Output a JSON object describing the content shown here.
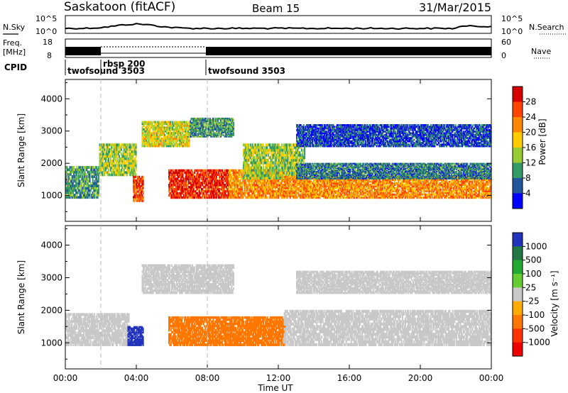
{
  "header": {
    "title": "Saskatoon (fitACF)",
    "beam": "Beam 15",
    "date": "31/Mar/2015"
  },
  "noise_panel": {
    "left_label": "N.Sky",
    "left_ticks": [
      "10^5",
      "10^0"
    ],
    "right_label": "N.Search",
    "right_ticks": [
      "10^5",
      "10^0"
    ]
  },
  "freq_panel": {
    "left_label_1": "Freq.",
    "left_label_2": "[MHz]",
    "left_ticks": [
      "18",
      "8"
    ],
    "right_label": "Nave",
    "right_ticks": [
      "60",
      "0"
    ]
  },
  "cpid": {
    "label": "CPID",
    "segments": [
      {
        "name": "twofsound 3503",
        "start_hour": 0
      },
      {
        "name": "rbsp 200",
        "start_hour": 2
      },
      {
        "name": "twofsound 3503",
        "start_hour": 8
      }
    ]
  },
  "x_axis": {
    "label": "Time UT",
    "ticks": [
      "00:00",
      "04:00",
      "08:00",
      "12:00",
      "16:00",
      "20:00",
      "00:00"
    ],
    "tick_hours": [
      0,
      4,
      8,
      12,
      16,
      20,
      24
    ]
  },
  "chart_data": [
    {
      "type": "heatmap",
      "name": "power",
      "ylabel": "Slant Range [km]",
      "ylim": [
        200,
        4600
      ],
      "yticks": [
        1000,
        2000,
        3000,
        4000
      ],
      "xlim": [
        0,
        24
      ],
      "colorbar": {
        "label": "Power [dB]",
        "ticks": [
          "28",
          "24",
          "20",
          "16",
          "12",
          "8",
          "4"
        ],
        "colors": [
          "#d70000",
          "#ff4400",
          "#ff8800",
          "#ffcc00",
          "#99cc33",
          "#339966",
          "#225599",
          "#0000ff"
        ]
      },
      "bands": [
        {
          "t0": 0,
          "t1": 1.9,
          "r0": 900,
          "r1": 1900,
          "level": 10
        },
        {
          "t0": 1.9,
          "t1": 4.0,
          "r0": 1600,
          "r1": 2600,
          "level": 14
        },
        {
          "t0": 3.8,
          "t1": 4.4,
          "r0": 800,
          "r1": 1600,
          "level": 26
        },
        {
          "t0": 4.3,
          "t1": 7.0,
          "r0": 2500,
          "r1": 3300,
          "level": 16
        },
        {
          "t0": 7.0,
          "t1": 9.5,
          "r0": 2800,
          "r1": 3400,
          "level": 10
        },
        {
          "t0": 5.8,
          "t1": 9.2,
          "r0": 900,
          "r1": 1800,
          "level": 28
        },
        {
          "t0": 9.2,
          "t1": 12.3,
          "r0": 900,
          "r1": 1800,
          "level": 22
        },
        {
          "t0": 10.0,
          "t1": 13.5,
          "r0": 1500,
          "r1": 2600,
          "level": 14
        },
        {
          "t0": 12.3,
          "t1": 24,
          "r0": 900,
          "r1": 1600,
          "level": 22
        },
        {
          "t0": 13.0,
          "t1": 24,
          "r0": 1500,
          "r1": 2000,
          "level": 8
        },
        {
          "t0": 13.0,
          "t1": 24,
          "r0": 2500,
          "r1": 3200,
          "level": 5
        }
      ]
    },
    {
      "type": "heatmap",
      "name": "velocity",
      "ylabel": "Slant Range [km]",
      "ylim": [
        200,
        4600
      ],
      "yticks": [
        1000,
        2000,
        3000,
        4000
      ],
      "xlim": [
        0,
        24
      ],
      "colorbar": {
        "label": "Velocity [m s⁻¹]",
        "ticks": [
          "1000",
          "500",
          "100",
          "25",
          "-25",
          "-100",
          "-500",
          "-1000"
        ],
        "colors": [
          "#2233bb",
          "#227744",
          "#22aa33",
          "#66cc33",
          "#c8c8c8",
          "#ffaa00",
          "#ff7700",
          "#ff3300",
          "#ee0000"
        ]
      },
      "bands": [
        {
          "t0": 0,
          "t1": 3.6,
          "r0": 900,
          "r1": 1900,
          "level": 0
        },
        {
          "t0": 3.5,
          "t1": 4.4,
          "r0": 900,
          "r1": 1500,
          "level": 800
        },
        {
          "t0": 4.3,
          "t1": 9.5,
          "r0": 2500,
          "r1": 3400,
          "level": 0
        },
        {
          "t0": 5.8,
          "t1": 12.4,
          "r0": 900,
          "r1": 1800,
          "level": -300
        },
        {
          "t0": 12.3,
          "t1": 24,
          "r0": 900,
          "r1": 2000,
          "level": 0
        },
        {
          "t0": 13.0,
          "t1": 24,
          "r0": 2500,
          "r1": 3200,
          "level": 0
        }
      ]
    }
  ]
}
